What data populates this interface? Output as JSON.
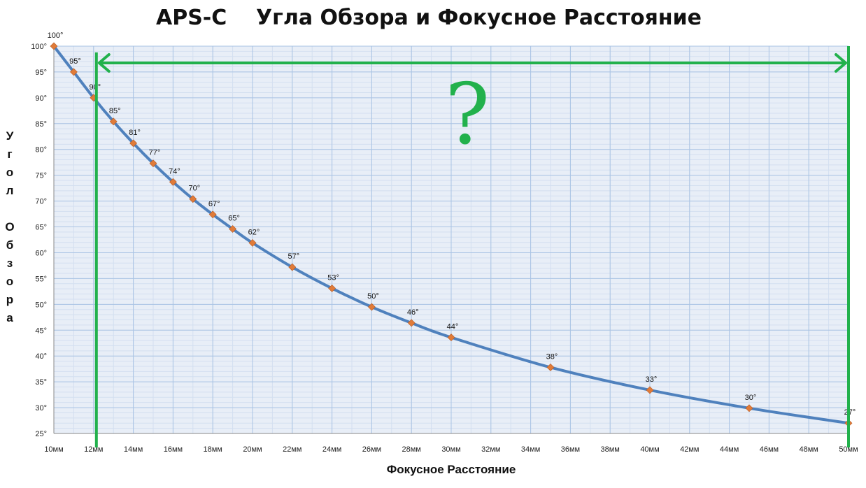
{
  "chart_data": {
    "type": "line",
    "title": "APS-C    Угла Обзора и Фокусное Расстояние",
    "xlabel": "Фокусное Расстояние",
    "ylabel": "Угол Обзора",
    "x_unit": "мм",
    "xlim": [
      10,
      50
    ],
    "ylim": [
      25,
      100
    ],
    "x_ticks": [
      10,
      12,
      14,
      16,
      18,
      20,
      22,
      24,
      26,
      28,
      30,
      32,
      34,
      36,
      38,
      40,
      42,
      44,
      46,
      48,
      50
    ],
    "x_tick_labels": [
      "10мм",
      "12мм",
      "14мм",
      "16мм",
      "18мм",
      "20мм",
      "22мм",
      "24мм",
      "26мм",
      "28мм",
      "30мм",
      "32мм",
      "34мм",
      "36мм",
      "38мм",
      "40мм",
      "42мм",
      "44мм",
      "46мм",
      "48мм",
      "50мм"
    ],
    "y_ticks": [
      25,
      30,
      35,
      40,
      45,
      50,
      55,
      60,
      65,
      70,
      75,
      80,
      85,
      90,
      95,
      100
    ],
    "y_tick_labels": [
      "25°",
      "30°",
      "35°",
      "40°",
      "45°",
      "50°",
      "55°",
      "60°",
      "65°",
      "70°",
      "75°",
      "80°",
      "85°",
      "90°",
      "95°",
      "100°"
    ],
    "grid": true,
    "series": [
      {
        "x": [
          10,
          11,
          12,
          13,
          14,
          15,
          16,
          17,
          18,
          19,
          20,
          22,
          24,
          26,
          28,
          30,
          35,
          40,
          45,
          50
        ],
        "values": [
          100,
          95,
          90,
          85.4,
          81.2,
          77.3,
          73.7,
          70.4,
          67.4,
          64.6,
          61.9,
          57.2,
          53.1,
          49.5,
          46.4,
          43.6,
          37.8,
          33.4,
          29.9,
          27
        ],
        "labels": [
          "100°",
          "95°",
          "90°",
          "85°",
          "81°",
          "77°",
          "74°",
          "70°",
          "67°",
          "65°",
          "62°",
          "57°",
          "53°",
          "50°",
          "46°",
          "44°",
          "38°",
          "33°",
          "30°",
          "27°"
        ]
      }
    ],
    "annotations": {
      "range_arrow": {
        "from_x": 12,
        "to_x": 50
      },
      "question_mark": "?"
    }
  },
  "colors": {
    "line": "#4f81bd",
    "marker": "#e07b39",
    "annotation": "#22b14c",
    "grid": "#aac4e4",
    "plot_bg": "#e8eef7"
  }
}
